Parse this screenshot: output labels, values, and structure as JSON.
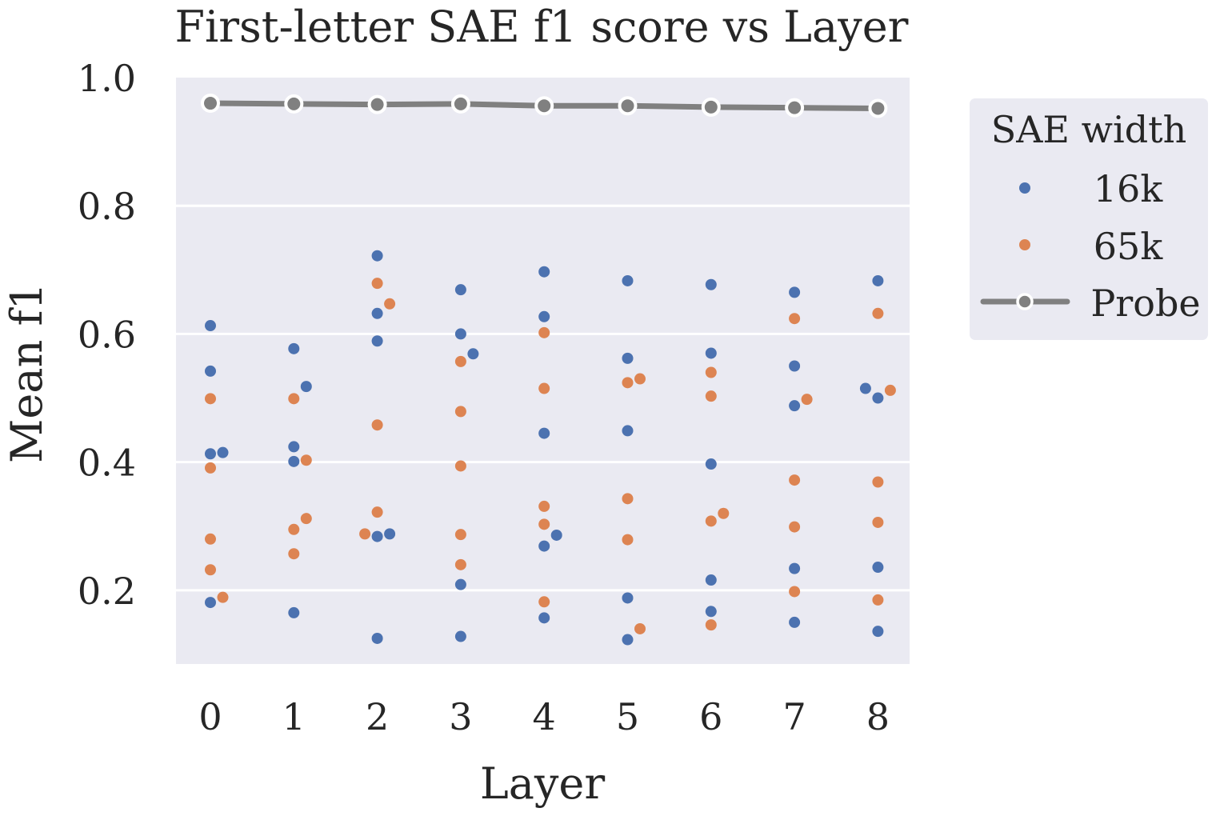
{
  "chart_data": {
    "type": "scatter",
    "title": "First-letter SAE f1 score vs Layer",
    "xlabel": "Layer",
    "ylabel": "Mean f1",
    "x_categories": [
      "0",
      "1",
      "2",
      "3",
      "4",
      "5",
      "6",
      "7",
      "8"
    ],
    "y_ticks": [
      "0.2",
      "0.4",
      "0.6",
      "0.8",
      "1.0"
    ],
    "ylim": [
      0.085,
      1.0
    ],
    "grid": true,
    "legend": {
      "title": "SAE width",
      "placement": "right"
    },
    "colors": {
      "background": "#EAEAF2",
      "grid": "#FFFFFF",
      "16k": "#4C72B0",
      "65k": "#DD8452",
      "probe": "#808080"
    },
    "series": [
      {
        "name": "16k",
        "kind": "swarm",
        "points": [
          {
            "layer": 0,
            "value": 0.613
          },
          {
            "layer": 0,
            "value": 0.542
          },
          {
            "layer": 0,
            "value": 0.415
          },
          {
            "layer": 0,
            "value": 0.413
          },
          {
            "layer": 0,
            "value": 0.181
          },
          {
            "layer": 1,
            "value": 0.577
          },
          {
            "layer": 1,
            "value": 0.518
          },
          {
            "layer": 1,
            "value": 0.424
          },
          {
            "layer": 1,
            "value": 0.401
          },
          {
            "layer": 1,
            "value": 0.165
          },
          {
            "layer": 2,
            "value": 0.722
          },
          {
            "layer": 2,
            "value": 0.632
          },
          {
            "layer": 2,
            "value": 0.589
          },
          {
            "layer": 2,
            "value": 0.288
          },
          {
            "layer": 2,
            "value": 0.284
          },
          {
            "layer": 2,
            "value": 0.125
          },
          {
            "layer": 3,
            "value": 0.669
          },
          {
            "layer": 3,
            "value": 0.6
          },
          {
            "layer": 3,
            "value": 0.569
          },
          {
            "layer": 3,
            "value": 0.209
          },
          {
            "layer": 3,
            "value": 0.128
          },
          {
            "layer": 4,
            "value": 0.697
          },
          {
            "layer": 4,
            "value": 0.627
          },
          {
            "layer": 4,
            "value": 0.445
          },
          {
            "layer": 4,
            "value": 0.286
          },
          {
            "layer": 4,
            "value": 0.269
          },
          {
            "layer": 4,
            "value": 0.157
          },
          {
            "layer": 5,
            "value": 0.683
          },
          {
            "layer": 5,
            "value": 0.562
          },
          {
            "layer": 5,
            "value": 0.449
          },
          {
            "layer": 5,
            "value": 0.188
          },
          {
            "layer": 5,
            "value": 0.123
          },
          {
            "layer": 6,
            "value": 0.677
          },
          {
            "layer": 6,
            "value": 0.57
          },
          {
            "layer": 6,
            "value": 0.397
          },
          {
            "layer": 6,
            "value": 0.216
          },
          {
            "layer": 6,
            "value": 0.167
          },
          {
            "layer": 7,
            "value": 0.665
          },
          {
            "layer": 7,
            "value": 0.55
          },
          {
            "layer": 7,
            "value": 0.488
          },
          {
            "layer": 7,
            "value": 0.234
          },
          {
            "layer": 7,
            "value": 0.15
          },
          {
            "layer": 8,
            "value": 0.683
          },
          {
            "layer": 8,
            "value": 0.515
          },
          {
            "layer": 8,
            "value": 0.5
          },
          {
            "layer": 8,
            "value": 0.236
          },
          {
            "layer": 8,
            "value": 0.136
          }
        ]
      },
      {
        "name": "65k",
        "kind": "swarm",
        "points": [
          {
            "layer": 0,
            "value": 0.499
          },
          {
            "layer": 0,
            "value": 0.391
          },
          {
            "layer": 0,
            "value": 0.28
          },
          {
            "layer": 0,
            "value": 0.232
          },
          {
            "layer": 0,
            "value": 0.189
          },
          {
            "layer": 1,
            "value": 0.499
          },
          {
            "layer": 1,
            "value": 0.403
          },
          {
            "layer": 1,
            "value": 0.312
          },
          {
            "layer": 1,
            "value": 0.295
          },
          {
            "layer": 1,
            "value": 0.257
          },
          {
            "layer": 2,
            "value": 0.679
          },
          {
            "layer": 2,
            "value": 0.647
          },
          {
            "layer": 2,
            "value": 0.458
          },
          {
            "layer": 2,
            "value": 0.322
          },
          {
            "layer": 2,
            "value": 0.288
          },
          {
            "layer": 3,
            "value": 0.557
          },
          {
            "layer": 3,
            "value": 0.479
          },
          {
            "layer": 3,
            "value": 0.394
          },
          {
            "layer": 3,
            "value": 0.287
          },
          {
            "layer": 3,
            "value": 0.24
          },
          {
            "layer": 4,
            "value": 0.602
          },
          {
            "layer": 4,
            "value": 0.515
          },
          {
            "layer": 4,
            "value": 0.331
          },
          {
            "layer": 4,
            "value": 0.303
          },
          {
            "layer": 4,
            "value": 0.182
          },
          {
            "layer": 5,
            "value": 0.53
          },
          {
            "layer": 5,
            "value": 0.524
          },
          {
            "layer": 5,
            "value": 0.343
          },
          {
            "layer": 5,
            "value": 0.279
          },
          {
            "layer": 5,
            "value": 0.14
          },
          {
            "layer": 6,
            "value": 0.54
          },
          {
            "layer": 6,
            "value": 0.503
          },
          {
            "layer": 6,
            "value": 0.32
          },
          {
            "layer": 6,
            "value": 0.308
          },
          {
            "layer": 6,
            "value": 0.146
          },
          {
            "layer": 7,
            "value": 0.624
          },
          {
            "layer": 7,
            "value": 0.498
          },
          {
            "layer": 7,
            "value": 0.372
          },
          {
            "layer": 7,
            "value": 0.299
          },
          {
            "layer": 7,
            "value": 0.198
          },
          {
            "layer": 8,
            "value": 0.632
          },
          {
            "layer": 8,
            "value": 0.512
          },
          {
            "layer": 8,
            "value": 0.369
          },
          {
            "layer": 8,
            "value": 0.306
          },
          {
            "layer": 8,
            "value": 0.185
          }
        ]
      },
      {
        "name": "Probe",
        "kind": "line",
        "values": [
          0.96,
          0.959,
          0.958,
          0.959,
          0.956,
          0.956,
          0.954,
          0.953,
          0.952
        ]
      }
    ]
  }
}
